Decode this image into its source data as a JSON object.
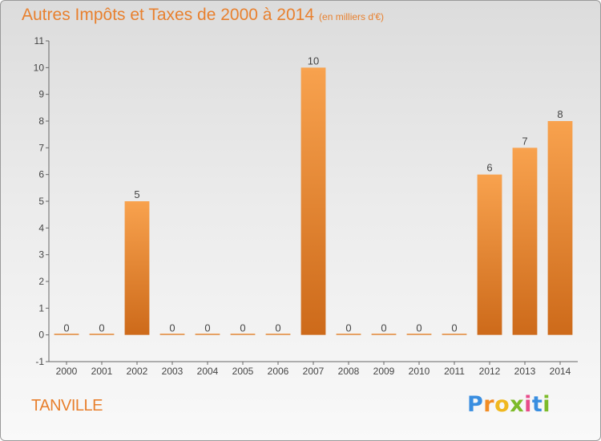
{
  "header": {
    "title": "Autres Impôts et Taxes de 2000 à 2014",
    "unit": "(en milliers d'€)"
  },
  "footer": {
    "commune": "TANVILLE",
    "logo": "Proxiti"
  },
  "colors": {
    "bar_light": "#f7a04d",
    "bar_dark": "#cf6c1c",
    "text": "#e8802e",
    "axis": "#555555"
  },
  "chart_data": {
    "type": "bar",
    "title": "Autres Impôts et Taxes de 2000 à 2014",
    "categories": [
      "2000",
      "2001",
      "2002",
      "2003",
      "2004",
      "2005",
      "2006",
      "2007",
      "2008",
      "2009",
      "2010",
      "2011",
      "2012",
      "2013",
      "2014"
    ],
    "values": [
      0,
      0,
      5,
      0,
      0,
      0,
      0,
      10,
      0,
      0,
      0,
      0,
      6,
      7,
      8
    ],
    "data_labels": [
      "0",
      "0",
      "5",
      "0",
      "0",
      "0",
      "0",
      "10",
      "0",
      "0",
      "0",
      "0",
      "6",
      "7",
      "8"
    ],
    "ylim": [
      -1,
      11
    ],
    "y_ticks": [
      -1,
      0,
      1,
      2,
      3,
      4,
      5,
      6,
      7,
      8,
      9,
      10,
      11
    ],
    "y_tick_labels": [
      "-1",
      "0",
      "1",
      "2",
      "3",
      "4",
      "5",
      "6",
      "7",
      "8",
      "9",
      "10",
      "11"
    ],
    "grid": false
  }
}
